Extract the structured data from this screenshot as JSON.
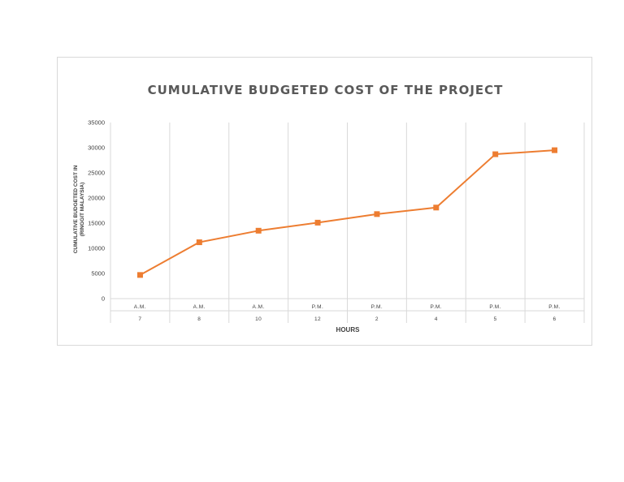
{
  "chart_data": {
    "type": "line",
    "title": "CUMULATIVE BUDGETED COST OF THE PROJECT",
    "xlabel": "HOURS",
    "ylabel_lines": [
      "CUMULATIVE BUDGETED COST IN",
      "(RINGGIT MALAYSIA)"
    ],
    "ylim": [
      0,
      35000
    ],
    "yticks": [
      0,
      5000,
      10000,
      15000,
      20000,
      25000,
      30000,
      35000
    ],
    "categories": [
      {
        "period": "A.M.",
        "hour": "7"
      },
      {
        "period": "A.M.",
        "hour": "8"
      },
      {
        "period": "A.M.",
        "hour": "10"
      },
      {
        "period": "P.M.",
        "hour": "12"
      },
      {
        "period": "P.M.",
        "hour": "2"
      },
      {
        "period": "P.M.",
        "hour": "4"
      },
      {
        "period": "P.M.",
        "hour": "5"
      },
      {
        "period": "P.M.",
        "hour": "6"
      }
    ],
    "series": [
      {
        "values": [
          4700,
          11200,
          13500,
          15100,
          16800,
          18100,
          28700,
          29500
        ],
        "color": "#ED7D31"
      }
    ],
    "grid": "vertical",
    "legend": "none"
  }
}
